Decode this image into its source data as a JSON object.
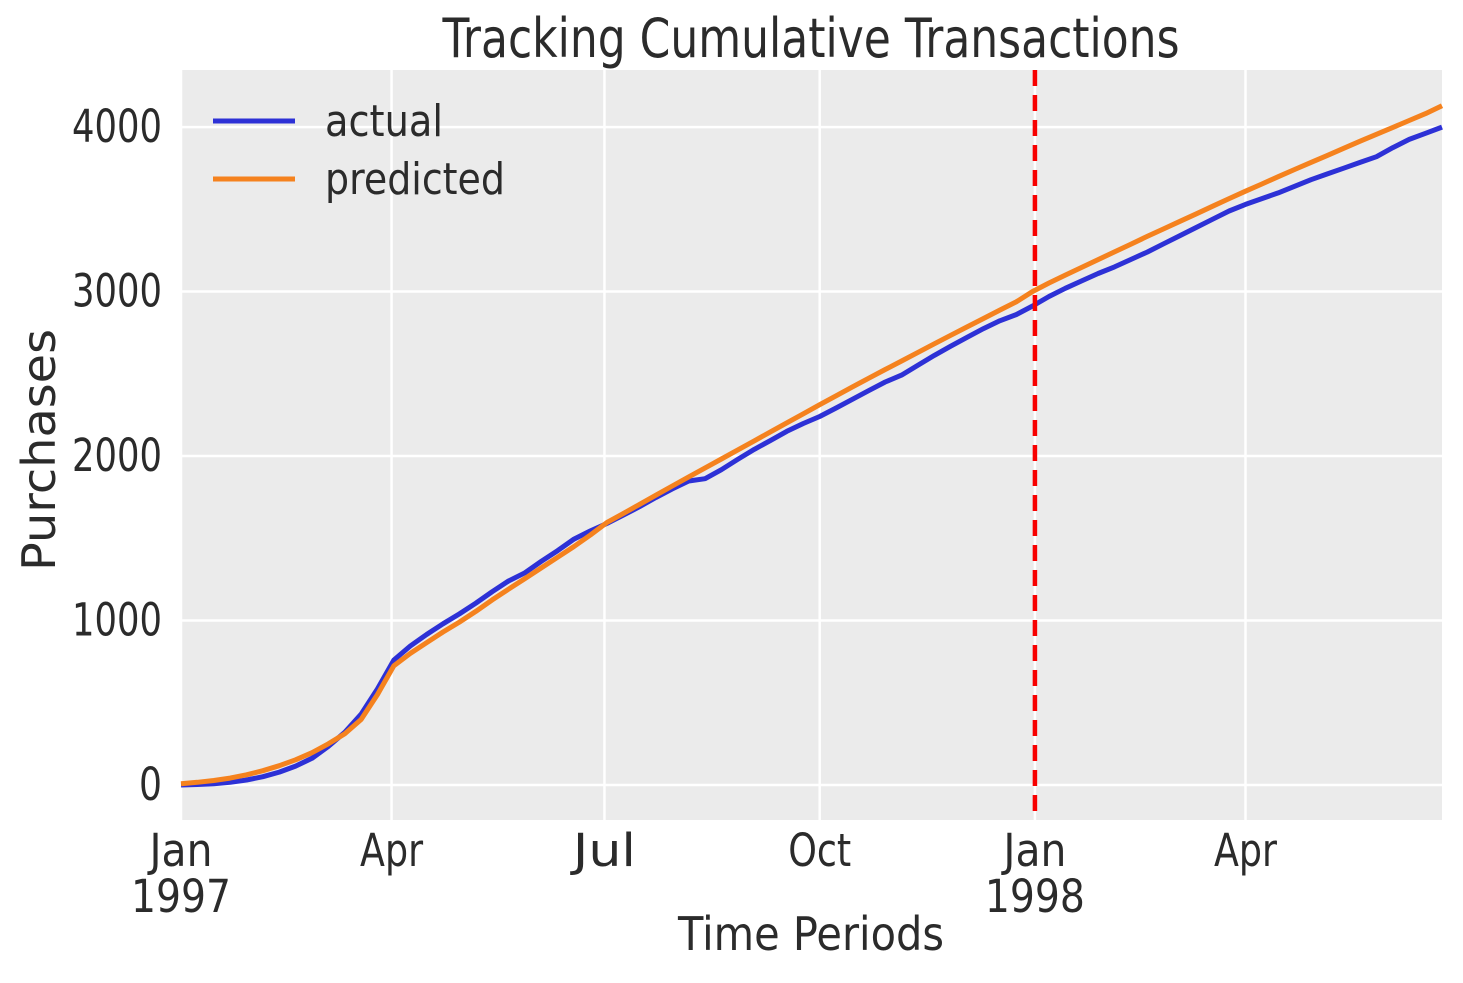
{
  "title": "Tracking Cumulative Transactions",
  "axes": {
    "x_label": "Time Periods",
    "y_label": "Purchases"
  },
  "legend": [
    {
      "label": "actual",
      "color": "#2d31d6"
    },
    {
      "label": "predicted",
      "color": "#f5821e"
    }
  ],
  "colors": {
    "plot_background": "#ebebeb",
    "grid": "#ffffff",
    "actual_line": "#2d31d6",
    "predicted_line": "#f5821e",
    "vline": "#f80000",
    "text": "#2b2b2b"
  },
  "chart_data": {
    "type": "line",
    "title": "Tracking Cumulative Transactions",
    "xlabel": "Time Periods",
    "ylabel": "Purchases",
    "x_unit": "days since 1997-01-01 (weekly cumulative transactions)",
    "x": [
      0,
      7,
      14,
      21,
      28,
      35,
      42,
      49,
      56,
      63,
      70,
      77,
      84,
      91,
      98,
      105,
      112,
      119,
      126,
      133,
      140,
      147,
      154,
      161,
      168,
      175,
      182,
      189,
      196,
      203,
      210,
      217,
      224,
      231,
      238,
      245,
      252,
      259,
      266,
      273,
      280,
      287,
      294,
      301,
      308,
      315,
      322,
      329,
      336,
      343,
      350,
      357,
      364,
      371,
      378,
      385,
      392,
      399,
      406,
      413,
      420,
      427,
      434,
      441,
      448,
      455,
      462,
      469,
      476,
      483,
      490,
      497,
      504,
      511,
      518,
      525,
      532,
      539
    ],
    "series": [
      {
        "name": "actual",
        "color": "#2d31d6",
        "values": [
          0,
          3,
          8,
          16,
          30,
          50,
          78,
          115,
          162,
          235,
          320,
          430,
          585,
          760,
          845,
          915,
          980,
          1040,
          1105,
          1175,
          1240,
          1290,
          1360,
          1425,
          1495,
          1545,
          1590,
          1640,
          1692,
          1748,
          1800,
          1848,
          1862,
          1917,
          1980,
          2040,
          2095,
          2150,
          2198,
          2240,
          2292,
          2345,
          2398,
          2450,
          2492,
          2552,
          2612,
          2668,
          2722,
          2775,
          2822,
          2860,
          2912,
          2970,
          3020,
          3065,
          3110,
          3150,
          3195,
          3240,
          3290,
          3340,
          3390,
          3440,
          3490,
          3530,
          3565,
          3600,
          3640,
          3680,
          3715,
          3750,
          3785,
          3820,
          3875,
          3925,
          3962,
          4000
        ]
      },
      {
        "name": "predicted",
        "color": "#f5821e",
        "values": [
          8,
          16,
          27,
          42,
          62,
          87,
          117,
          153,
          196,
          250,
          312,
          398,
          550,
          725,
          800,
          865,
          930,
          990,
          1055,
          1125,
          1190,
          1255,
          1320,
          1385,
          1450,
          1520,
          1595,
          1650,
          1706,
          1762,
          1818,
          1873,
          1928,
          1982,
          2037,
          2092,
          2147,
          2202,
          2257,
          2312,
          2366,
          2420,
          2473,
          2526,
          2578,
          2630,
          2682,
          2734,
          2785,
          2836,
          2887,
          2937,
          3000,
          3052,
          3100,
          3147,
          3194,
          3241,
          3288,
          3335,
          3381,
          3427,
          3473,
          3519,
          3565,
          3610,
          3654,
          3698,
          3742,
          3785,
          3828,
          3871,
          3914,
          3956,
          3998,
          4040,
          4082,
          4130
        ]
      }
    ],
    "vline": {
      "x": 365,
      "color": "#f80000",
      "style": "dashed"
    },
    "x_ticks": [
      {
        "x": 0,
        "label": "Jan",
        "year": "1997"
      },
      {
        "x": 90,
        "label": "Apr",
        "year": ""
      },
      {
        "x": 181,
        "label": "Jul",
        "year": ""
      },
      {
        "x": 273,
        "label": "Oct",
        "year": ""
      },
      {
        "x": 365,
        "label": "Jan",
        "year": "1998"
      },
      {
        "x": 455,
        "label": "Apr",
        "year": ""
      }
    ],
    "y_ticks": [
      0,
      1000,
      2000,
      3000,
      4000
    ],
    "xlim": [
      0,
      539
    ],
    "ylim": [
      -213,
      4347
    ],
    "grid": true,
    "legend_position": "upper left"
  }
}
